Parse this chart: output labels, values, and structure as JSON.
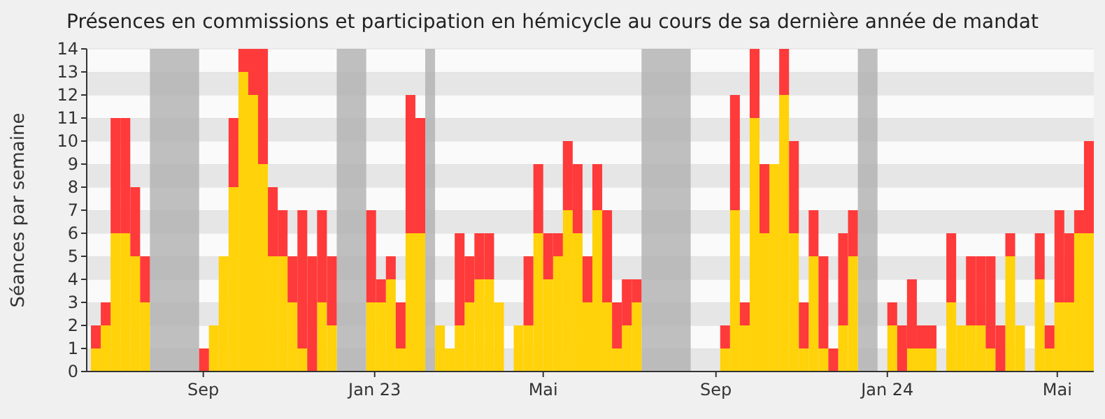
{
  "chart_data": {
    "type": "bar",
    "stacked": true,
    "title": "Présences en commissions et participation en hémicycle au cours de sa dernière année de mandat",
    "ylabel": "Séances par semaine",
    "x": [
      "2022-06-13",
      "2022-06-20",
      "2022-06-27",
      "2022-07-04",
      "2022-07-11",
      "2022-07-18",
      "2022-07-25",
      "2022-08-01",
      "2022-08-08",
      "2022-08-15",
      "2022-08-22",
      "2022-08-29",
      "2022-09-05",
      "2022-09-12",
      "2022-09-19",
      "2022-09-26",
      "2022-10-03",
      "2022-10-10",
      "2022-10-17",
      "2022-10-24",
      "2022-10-31",
      "2022-11-07",
      "2022-11-14",
      "2022-11-21",
      "2022-11-28",
      "2022-12-05",
      "2022-12-12",
      "2022-12-19",
      "2022-12-26",
      "2023-01-02",
      "2023-01-09",
      "2023-01-16",
      "2023-01-23",
      "2023-01-30",
      "2023-02-06",
      "2023-02-13",
      "2023-02-20",
      "2023-02-27",
      "2023-03-06",
      "2023-03-13",
      "2023-03-20",
      "2023-03-27",
      "2023-04-03",
      "2023-04-10",
      "2023-04-17",
      "2023-04-24",
      "2023-05-01",
      "2023-05-08",
      "2023-05-15",
      "2023-05-22",
      "2023-05-29",
      "2023-06-05",
      "2023-06-12",
      "2023-06-19",
      "2023-06-26",
      "2023-07-03",
      "2023-07-10",
      "2023-07-17",
      "2023-07-24",
      "2023-07-31",
      "2023-08-07",
      "2023-08-14",
      "2023-08-21",
      "2023-08-28",
      "2023-09-04",
      "2023-09-11",
      "2023-09-18",
      "2023-09-25",
      "2023-10-02",
      "2023-10-09",
      "2023-10-16",
      "2023-10-23",
      "2023-10-30",
      "2023-11-06",
      "2023-11-13",
      "2023-11-20",
      "2023-11-27",
      "2023-12-04",
      "2023-12-11",
      "2023-12-18",
      "2023-12-25",
      "2024-01-01",
      "2024-01-08",
      "2024-01-15",
      "2024-01-22",
      "2024-01-29",
      "2024-02-05",
      "2024-02-12",
      "2024-02-19",
      "2024-02-26",
      "2024-03-04",
      "2024-03-11",
      "2024-03-18",
      "2024-03-25",
      "2024-04-01",
      "2024-04-08",
      "2024-04-15",
      "2024-04-22",
      "2024-04-29",
      "2024-05-06",
      "2024-05-13",
      "2024-05-20"
    ],
    "series": [
      {
        "color": "#ffd20a",
        "values": [
          1,
          2,
          6,
          6,
          5,
          3,
          0,
          0,
          0,
          0,
          0,
          0,
          2,
          5,
          8,
          13,
          12,
          9,
          5,
          5,
          3,
          1,
          0,
          3,
          2,
          0,
          0,
          0,
          3,
          3,
          4,
          1,
          6,
          6,
          0,
          2,
          1,
          2,
          3,
          4,
          4,
          3,
          0,
          2,
          2,
          6,
          4,
          5,
          7,
          6,
          3,
          7,
          3,
          1,
          2,
          3,
          0,
          0,
          0,
          0,
          0,
          0,
          0,
          0,
          1,
          7,
          2,
          11,
          6,
          9,
          12,
          6,
          1,
          5,
          1,
          0,
          2,
          5,
          0,
          0,
          0,
          2,
          0,
          1,
          1,
          1,
          0,
          3,
          2,
          2,
          2,
          1,
          0,
          5,
          2,
          0,
          4,
          1,
          3,
          3,
          6,
          6
        ]
      },
      {
        "color": "#ff3a3a",
        "values": [
          1,
          1,
          5,
          5,
          3,
          2,
          0,
          0,
          0,
          0,
          0,
          1,
          0,
          0,
          3,
          1,
          2,
          5,
          3,
          2,
          2,
          6,
          5,
          4,
          3,
          0,
          0,
          0,
          4,
          1,
          1,
          2,
          6,
          5,
          0,
          0,
          0,
          4,
          2,
          2,
          2,
          0,
          0,
          0,
          3,
          3,
          2,
          1,
          3,
          3,
          2,
          2,
          4,
          2,
          2,
          1,
          0,
          0,
          0,
          0,
          0,
          0,
          0,
          0,
          1,
          5,
          1,
          3,
          3,
          0,
          2,
          4,
          2,
          2,
          4,
          1,
          4,
          2,
          0,
          0,
          0,
          1,
          2,
          3,
          1,
          1,
          0,
          3,
          0,
          3,
          3,
          4,
          2,
          1,
          0,
          0,
          2,
          1,
          4,
          3,
          1,
          4
        ]
      }
    ],
    "xlim": [
      "2022-06-10",
      "2024-05-27"
    ],
    "xticks": [
      {
        "value": "2022-09-01",
        "label": "Sep"
      },
      {
        "value": "2023-01-01",
        "label": "Jan 23"
      },
      {
        "value": "2023-05-01",
        "label": "Mai"
      },
      {
        "value": "2023-09-01",
        "label": "Sep"
      },
      {
        "value": "2024-01-01",
        "label": "Jan 24"
      },
      {
        "value": "2024-05-01",
        "label": "Mai"
      }
    ],
    "ylim": [
      0,
      14
    ],
    "yticks": [
      0,
      1,
      2,
      3,
      4,
      5,
      6,
      7,
      8,
      9,
      10,
      11,
      12,
      13,
      14
    ],
    "grid": "y",
    "bands": [
      {
        "axis": "x",
        "from": "2022-07-25",
        "to": "2022-08-29",
        "color": "#b0b0b0"
      },
      {
        "axis": "x",
        "from": "2022-12-05",
        "to": "2022-12-26",
        "color": "#b0b0b0"
      },
      {
        "axis": "x",
        "from": "2023-02-06",
        "to": "2023-02-13",
        "color": "#b0b0b0"
      },
      {
        "axis": "x",
        "from": "2023-07-10",
        "to": "2023-08-14",
        "color": "#b0b0b0"
      },
      {
        "axis": "x",
        "from": "2023-12-11",
        "to": "2023-12-25",
        "color": "#b0b0b0"
      }
    ]
  }
}
